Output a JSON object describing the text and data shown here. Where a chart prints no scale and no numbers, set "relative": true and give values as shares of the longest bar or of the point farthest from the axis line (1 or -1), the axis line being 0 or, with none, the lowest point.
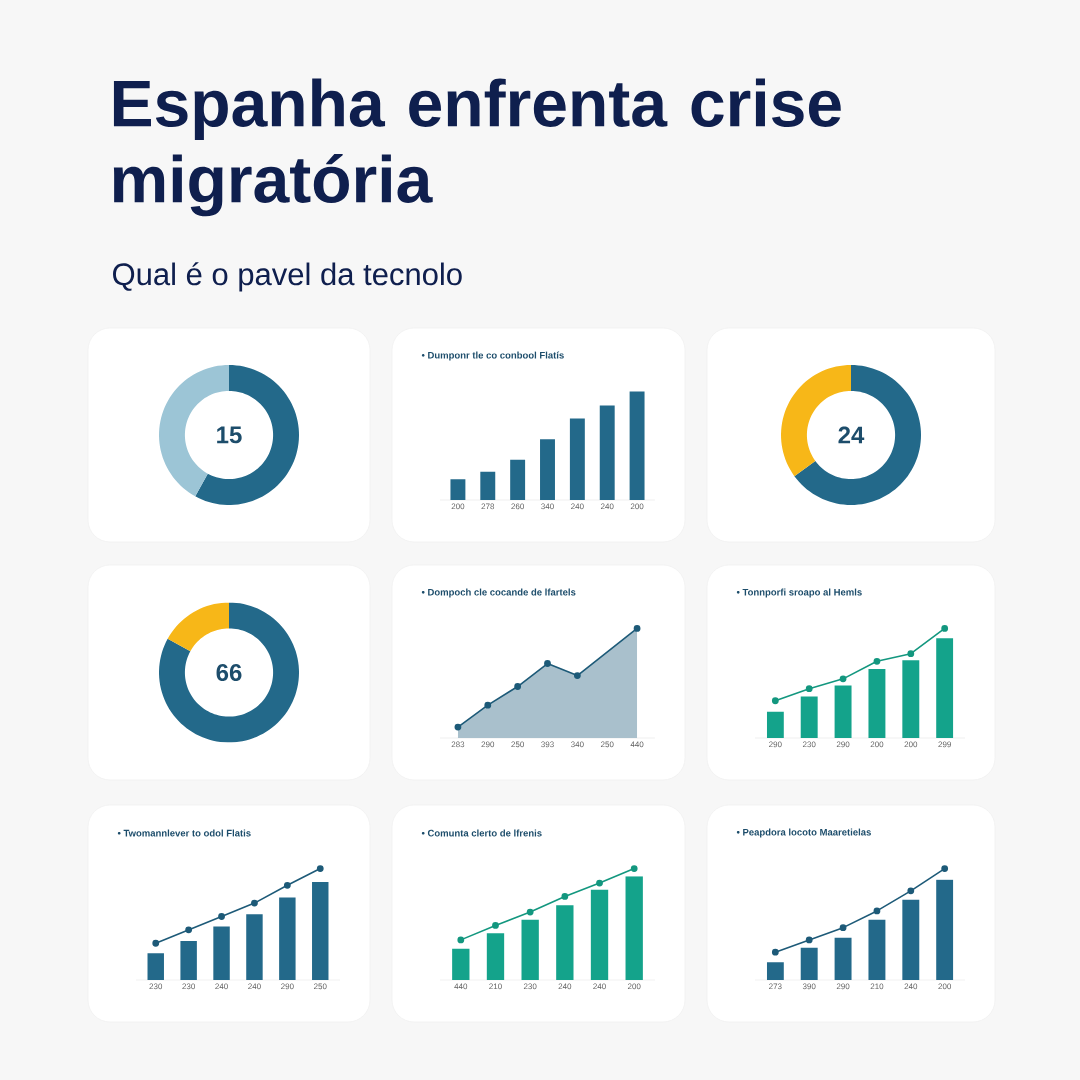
{
  "chart_data": [
    {
      "type": "donut",
      "title": "Espanha enfrenta crise migratória",
      "subtitle": "Qual é o pavel da tecnolo",
      "categories": [
        null,
        null
      ],
      "values": [
        58,
        42
      ],
      "colors": [
        "#23698a",
        "#9cc5d6"
      ],
      "annotations": [
        "15"
      ]
    },
    {
      "type": "bar",
      "title": "• Dumponr tle co conbool Flatís",
      "categories": [
        "200",
        "278",
        "260",
        "340",
        "240",
        "240",
        "200"
      ],
      "values": [
        0.19,
        0.26,
        0.37,
        0.56,
        0.75,
        0.87,
        1
      ],
      "color": "#23698a",
      "relative": true
    },
    {
      "type": "donut",
      "categories": [
        null,
        null
      ],
      "values": [
        65,
        35
      ],
      "colors": [
        "#23698a",
        "#f7b718"
      ],
      "annotations": [
        "24"
      ]
    },
    {
      "type": "donut",
      "categories": [
        null,
        null
      ],
      "values": [
        83,
        17
      ],
      "colors": [
        "#23698a",
        "#f7b718"
      ],
      "annotations": [
        "66"
      ]
    },
    {
      "type": "area",
      "title": "• Dompoch cle cocande de lfartels",
      "categories": [
        "283",
        "290",
        "250",
        "393",
        "340",
        "250",
        "440"
      ],
      "series": [
        {
          "color": "#1d5a78",
          "values": [
            0.1,
            0.3,
            0.47,
            0.68,
            0.57,
            null,
            1
          ]
        }
      ],
      "relative": true,
      "marker": "circle"
    },
    {
      "type": "bar",
      "title": "• Tonnporfi sroapo al Hemls",
      "categories": [
        "290",
        "230",
        "290",
        "200",
        "200",
        "299"
      ],
      "series": [
        {
          "type": "bar",
          "color": "#14a38b",
          "values": [
            0.24,
            0.38,
            0.48,
            0.63,
            0.71,
            0.91
          ]
        },
        {
          "type": "line",
          "color": "#13977f",
          "values": [
            0.34,
            0.45,
            0.54,
            0.7,
            0.77,
            1
          ]
        }
      ],
      "relative": true,
      "marker": "circle"
    },
    {
      "type": "bar",
      "title": "• Twomannlever to odol Flatis",
      "categories": [
        "230",
        "230",
        "240",
        "240",
        "290",
        "250"
      ],
      "series": [
        {
          "type": "bar",
          "color": "#23698a",
          "values": [
            0.24,
            0.35,
            0.48,
            0.59,
            0.74,
            0.88
          ]
        },
        {
          "type": "line",
          "color": "#1d5a78",
          "values": [
            0.33,
            0.45,
            0.57,
            0.69,
            0.85,
            1
          ]
        }
      ],
      "relative": true,
      "marker": "circle"
    },
    {
      "type": "bar",
      "title": "• Comunta clerto de lfrenis",
      "categories": [
        "440",
        "210",
        "230",
        "240",
        "240",
        "200"
      ],
      "series": [
        {
          "type": "bar",
          "color": "#14a38b",
          "values": [
            0.28,
            0.42,
            0.54,
            0.67,
            0.81,
            0.93
          ]
        },
        {
          "type": "line",
          "color": "#13977f",
          "values": [
            0.36,
            0.49,
            0.61,
            0.75,
            0.87,
            1
          ]
        }
      ],
      "relative": true,
      "marker": "circle"
    },
    {
      "type": "bar",
      "title": "• Peapdora locoto Maaretielas",
      "categories": [
        "273",
        "390",
        "290",
        "210",
        "240",
        "200"
      ],
      "series": [
        {
          "type": "bar",
          "color": "#23698a",
          "values": [
            0.16,
            0.29,
            0.38,
            0.54,
            0.72,
            0.9
          ]
        },
        {
          "type": "line",
          "color": "#1d5a78",
          "values": [
            0.25,
            0.36,
            0.47,
            0.62,
            0.8,
            1
          ]
        }
      ],
      "relative": true,
      "marker": "circle"
    }
  ]
}
